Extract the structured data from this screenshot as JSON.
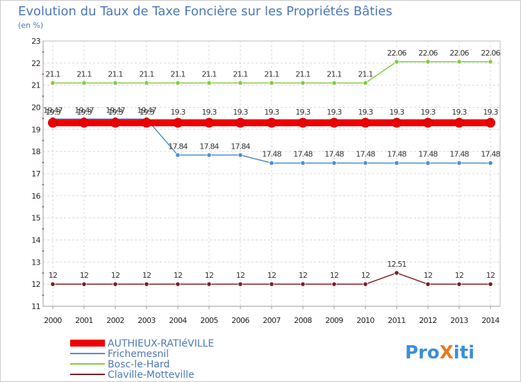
{
  "chart_data": {
    "type": "line",
    "title": "Evolution du Taux de Taxe Foncière sur les Propriétés Bâties",
    "subtitle": "(en %)",
    "xlabel": "",
    "ylabel": "",
    "ylim": [
      11,
      23
    ],
    "yticks": [
      11,
      12,
      13,
      14,
      15,
      16,
      17,
      18,
      19,
      20,
      21,
      22,
      23
    ],
    "categories": [
      "2000",
      "2001",
      "2002",
      "2003",
      "2004",
      "2005",
      "2006",
      "2007",
      "2008",
      "2009",
      "2010",
      "2011",
      "2012",
      "2013",
      "2014"
    ],
    "series": [
      {
        "name": "AUTHIEUX-RATIéVILLE",
        "color": "#ee0000",
        "values": [
          19.3,
          19.3,
          19.3,
          19.3,
          19.3,
          19.3,
          19.3,
          19.3,
          19.3,
          19.3,
          19.3,
          19.3,
          19.3,
          19.3,
          19.3
        ],
        "labels": [
          "19.3",
          "19.3",
          "19.3",
          "19.3",
          "19.3",
          "19.3",
          "19.3",
          "19.3",
          "19.3",
          "19.3",
          "19.3",
          "19.3",
          "19.3",
          "19.3",
          "19.3"
        ]
      },
      {
        "name": "Frichemesnil",
        "color": "#4d8fcc",
        "values": [
          19.47,
          19.47,
          19.47,
          19.47,
          17.84,
          17.84,
          17.84,
          17.48,
          17.48,
          17.48,
          17.48,
          17.48,
          17.48,
          17.48,
          17.48
        ],
        "labels": [
          "19.47",
          "19.47",
          "19.47",
          "19.47",
          "17.84",
          "17.84",
          "17.84",
          "17.48",
          "17.48",
          "17.48",
          "17.48",
          "17.48",
          "17.48",
          "17.48",
          "17.48"
        ]
      },
      {
        "name": "Bosc-le-Hard",
        "color": "#80cc40",
        "values": [
          21.1,
          21.1,
          21.1,
          21.1,
          21.1,
          21.1,
          21.1,
          21.1,
          21.1,
          21.1,
          21.1,
          22.06,
          22.06,
          22.06,
          22.06
        ],
        "labels": [
          "21.1",
          "21.1",
          "21.1",
          "21.1",
          "21.1",
          "21.1",
          "21.1",
          "21.1",
          "21.1",
          "21.1",
          "21.1",
          "22.06",
          "22.06",
          "22.06",
          "22.06"
        ]
      },
      {
        "name": "Claville-Motteville",
        "color": "#7a1f1f",
        "values": [
          12,
          12,
          12,
          12,
          12,
          12,
          12,
          12,
          12,
          12,
          12,
          12.51,
          12,
          12,
          12
        ],
        "labels": [
          "12",
          "12",
          "12",
          "12",
          "12",
          "12",
          "12",
          "12",
          "12",
          "12",
          "12",
          "12.51",
          "12",
          "12",
          "12"
        ]
      }
    ]
  },
  "branding": {
    "logo_text": "ProXiti",
    "logo_parts": [
      "Pro",
      "X",
      "iti"
    ]
  }
}
